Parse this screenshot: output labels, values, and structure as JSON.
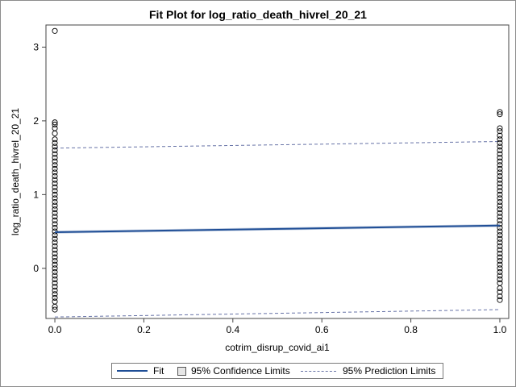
{
  "chart_data": {
    "type": "scatter",
    "title": "Fit Plot for log_ratio_death_hivrel_20_21",
    "xlabel": "cotrim_disrup_covid_ai1",
    "ylabel": "log_ratio_death_hivrel_20_21",
    "xlim": [
      -0.02,
      1.02
    ],
    "ylim": [
      -0.68,
      3.3
    ],
    "x_ticks": [
      0.0,
      0.2,
      0.4,
      0.6,
      0.8,
      1.0
    ],
    "x_tick_labels": [
      "0.0",
      "0.2",
      "0.4",
      "0.6",
      "0.8",
      "1.0"
    ],
    "y_ticks": [
      0,
      1,
      2,
      3
    ],
    "y_tick_labels": [
      "0",
      "1",
      "2",
      "3"
    ],
    "grid": false,
    "legend_position": "bottom",
    "colors": {
      "fit": "#1f4e96",
      "confidence": "#c8d3e4",
      "prediction": "#6672a6",
      "points": "#000000"
    },
    "legend": [
      {
        "label": "Fit",
        "kind": "line"
      },
      {
        "label": "95% Confidence Limits",
        "kind": "band"
      },
      {
        "label": "95% Prediction Limits",
        "kind": "dashed"
      }
    ],
    "fit_line": {
      "x": [
        0,
        1
      ],
      "y": [
        0.49,
        0.58
      ]
    },
    "confidence_limits": {
      "x": [
        0,
        1
      ],
      "lower": [
        0.47,
        0.56
      ],
      "upper": [
        0.51,
        0.6
      ]
    },
    "prediction_limits": {
      "x": [
        0,
        1
      ],
      "lower": [
        -0.66,
        -0.56
      ],
      "upper": [
        1.63,
        1.72
      ]
    },
    "points": [
      {
        "x": 0,
        "y": 3.22
      },
      {
        "x": 0,
        "y": 1.98
      },
      {
        "x": 0,
        "y": 1.95
      },
      {
        "x": 0,
        "y": 1.9
      },
      {
        "x": 0,
        "y": 1.83
      },
      {
        "x": 0,
        "y": 1.75
      },
      {
        "x": 0,
        "y": 1.7
      },
      {
        "x": 0,
        "y": 1.65
      },
      {
        "x": 0,
        "y": 1.6
      },
      {
        "x": 0,
        "y": 1.55
      },
      {
        "x": 0,
        "y": 1.5
      },
      {
        "x": 0,
        "y": 1.45
      },
      {
        "x": 0,
        "y": 1.4
      },
      {
        "x": 0,
        "y": 1.35
      },
      {
        "x": 0,
        "y": 1.3
      },
      {
        "x": 0,
        "y": 1.25
      },
      {
        "x": 0,
        "y": 1.2
      },
      {
        "x": 0,
        "y": 1.15
      },
      {
        "x": 0,
        "y": 1.1
      },
      {
        "x": 0,
        "y": 1.05
      },
      {
        "x": 0,
        "y": 1.0
      },
      {
        "x": 0,
        "y": 0.95
      },
      {
        "x": 0,
        "y": 0.9
      },
      {
        "x": 0,
        "y": 0.85
      },
      {
        "x": 0,
        "y": 0.8
      },
      {
        "x": 0,
        "y": 0.75
      },
      {
        "x": 0,
        "y": 0.7
      },
      {
        "x": 0,
        "y": 0.65
      },
      {
        "x": 0,
        "y": 0.6
      },
      {
        "x": 0,
        "y": 0.55
      },
      {
        "x": 0,
        "y": 0.5
      },
      {
        "x": 0,
        "y": 0.45
      },
      {
        "x": 0,
        "y": 0.4
      },
      {
        "x": 0,
        "y": 0.35
      },
      {
        "x": 0,
        "y": 0.3
      },
      {
        "x": 0,
        "y": 0.25
      },
      {
        "x": 0,
        "y": 0.2
      },
      {
        "x": 0,
        "y": 0.15
      },
      {
        "x": 0,
        "y": 0.1
      },
      {
        "x": 0,
        "y": 0.05
      },
      {
        "x": 0,
        "y": 0.0
      },
      {
        "x": 0,
        "y": -0.05
      },
      {
        "x": 0,
        "y": -0.1
      },
      {
        "x": 0,
        "y": -0.15
      },
      {
        "x": 0,
        "y": -0.2
      },
      {
        "x": 0,
        "y": -0.25
      },
      {
        "x": 0,
        "y": -0.3
      },
      {
        "x": 0,
        "y": -0.35
      },
      {
        "x": 0,
        "y": -0.4
      },
      {
        "x": 0,
        "y": -0.45
      },
      {
        "x": 0,
        "y": -0.52
      },
      {
        "x": 0,
        "y": -0.56
      },
      {
        "x": 1,
        "y": 2.12
      },
      {
        "x": 1,
        "y": 2.09
      },
      {
        "x": 1,
        "y": 1.9
      },
      {
        "x": 1,
        "y": 1.86
      },
      {
        "x": 1,
        "y": 1.8
      },
      {
        "x": 1,
        "y": 1.75
      },
      {
        "x": 1,
        "y": 1.7
      },
      {
        "x": 1,
        "y": 1.65
      },
      {
        "x": 1,
        "y": 1.6
      },
      {
        "x": 1,
        "y": 1.55
      },
      {
        "x": 1,
        "y": 1.5
      },
      {
        "x": 1,
        "y": 1.45
      },
      {
        "x": 1,
        "y": 1.4
      },
      {
        "x": 1,
        "y": 1.35
      },
      {
        "x": 1,
        "y": 1.3
      },
      {
        "x": 1,
        "y": 1.25
      },
      {
        "x": 1,
        "y": 1.2
      },
      {
        "x": 1,
        "y": 1.15
      },
      {
        "x": 1,
        "y": 1.1
      },
      {
        "x": 1,
        "y": 1.05
      },
      {
        "x": 1,
        "y": 1.0
      },
      {
        "x": 1,
        "y": 0.95
      },
      {
        "x": 1,
        "y": 0.9
      },
      {
        "x": 1,
        "y": 0.85
      },
      {
        "x": 1,
        "y": 0.8
      },
      {
        "x": 1,
        "y": 0.75
      },
      {
        "x": 1,
        "y": 0.7
      },
      {
        "x": 1,
        "y": 0.65
      },
      {
        "x": 1,
        "y": 0.6
      },
      {
        "x": 1,
        "y": 0.55
      },
      {
        "x": 1,
        "y": 0.5
      },
      {
        "x": 1,
        "y": 0.45
      },
      {
        "x": 1,
        "y": 0.4
      },
      {
        "x": 1,
        "y": 0.35
      },
      {
        "x": 1,
        "y": 0.3
      },
      {
        "x": 1,
        "y": 0.25
      },
      {
        "x": 1,
        "y": 0.2
      },
      {
        "x": 1,
        "y": 0.15
      },
      {
        "x": 1,
        "y": 0.1
      },
      {
        "x": 1,
        "y": 0.05
      },
      {
        "x": 1,
        "y": 0.0
      },
      {
        "x": 1,
        "y": -0.05
      },
      {
        "x": 1,
        "y": -0.1
      },
      {
        "x": 1,
        "y": -0.15
      },
      {
        "x": 1,
        "y": -0.2
      },
      {
        "x": 1,
        "y": -0.27
      },
      {
        "x": 1,
        "y": -0.32
      },
      {
        "x": 1,
        "y": -0.38
      },
      {
        "x": 1,
        "y": -0.43
      }
    ]
  }
}
